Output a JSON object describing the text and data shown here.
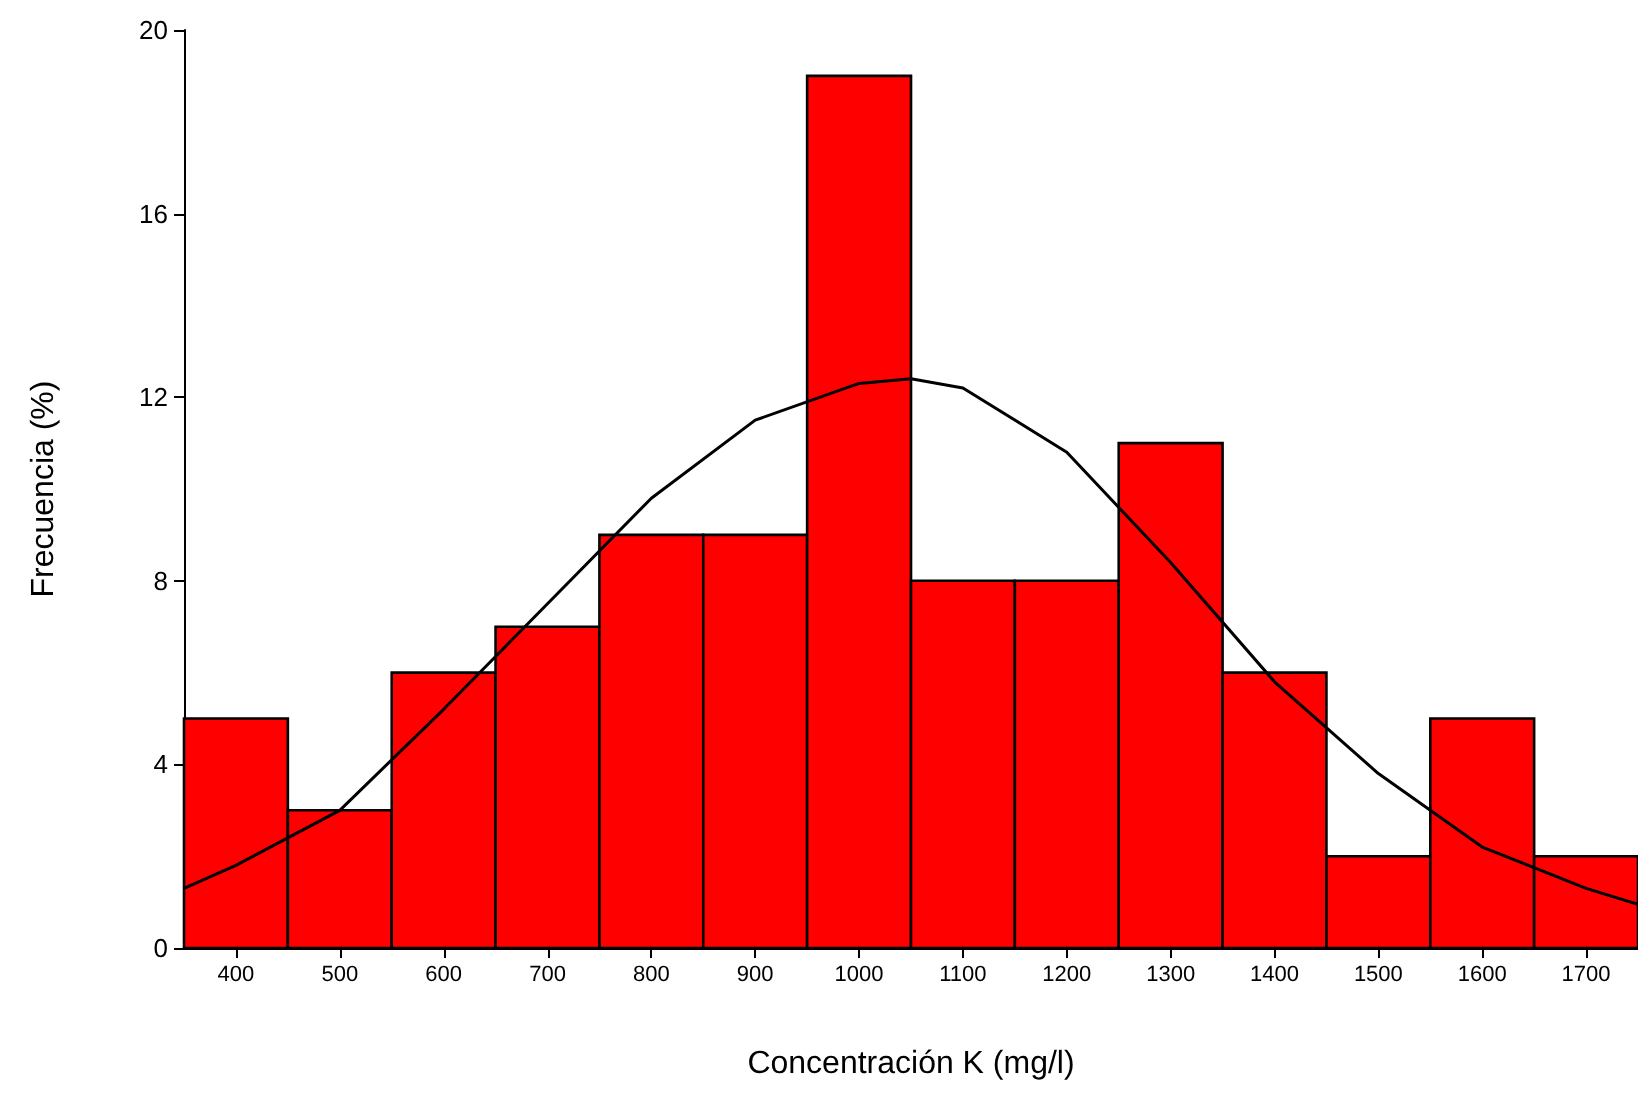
{
  "chart_data": {
    "type": "histogram",
    "xlabel": "Concentración K (mg/l)",
    "ylabel": "Frecuencia (%)",
    "bins": [
      350,
      450,
      550,
      650,
      750,
      850,
      950,
      1050,
      1150,
      1250,
      1350,
      1450,
      1550,
      1650,
      1750
    ],
    "values": [
      5,
      3,
      6,
      7,
      9,
      9,
      19,
      8,
      8,
      11,
      6,
      2,
      5,
      2
    ],
    "color": "#ff0000",
    "series": [
      {
        "type": "line",
        "color": "#000000",
        "marker": "none",
        "x": [
          350,
          400,
          500,
          600,
          700,
          800,
          900,
          1000,
          1050,
          1100,
          1200,
          1300,
          1400,
          1500,
          1600,
          1700,
          1750
        ],
        "values": [
          1.3,
          1.8,
          3.0,
          5.2,
          7.5,
          9.8,
          11.5,
          12.3,
          12.4,
          12.2,
          10.8,
          8.4,
          5.8,
          3.8,
          2.2,
          1.3,
          0.95
        ]
      }
    ],
    "xlim": [
      350,
      1750
    ],
    "xticks": [
      400,
      500,
      600,
      700,
      800,
      900,
      1000,
      1100,
      1200,
      1300,
      1400,
      1500,
      1600,
      1700
    ],
    "ylim": [
      0,
      20
    ],
    "yticks": [
      0,
      4,
      8,
      12,
      16,
      20
    ],
    "grid": false
  }
}
